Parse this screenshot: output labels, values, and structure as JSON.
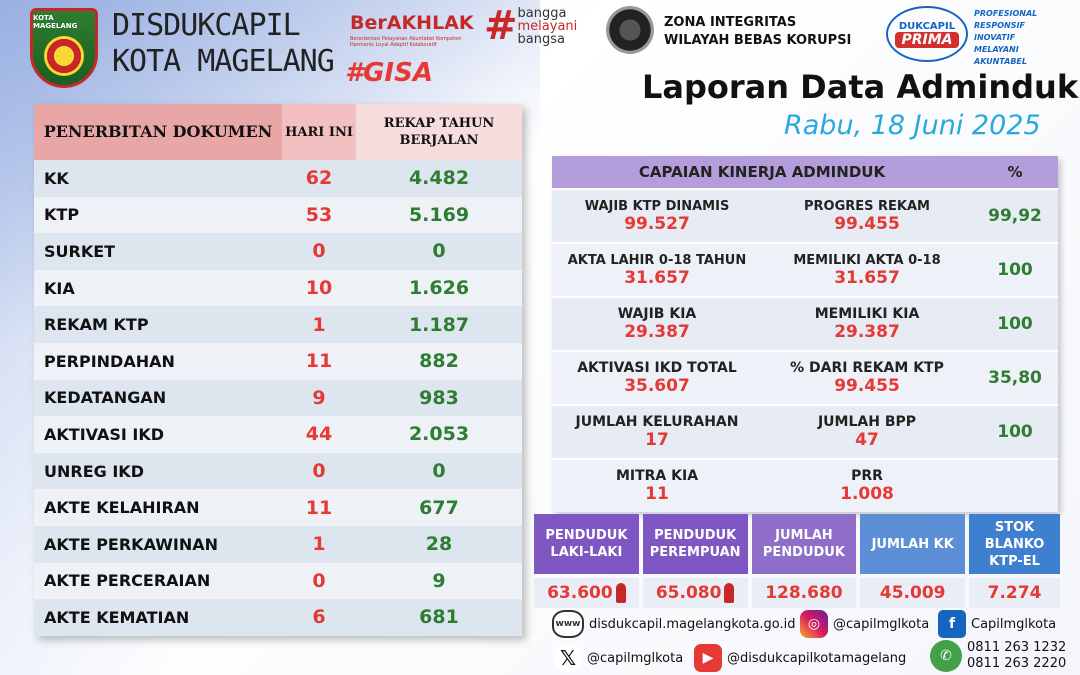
{
  "header": {
    "logo_text": "KOTA MAGELANG",
    "org_line1": "DISDUKCAPIL",
    "org_line2": "KOTA MAGELANG",
    "berakhlak": "BerAKHLAK",
    "berakhlak_sub": "Berorientasi Pelayanan Akuntabel Kompeten Harmonis Loyal Adaptif Kolaboratif",
    "bangga_hash": "#",
    "bangga_lines": [
      "bangga",
      "melayani",
      "bangsa"
    ],
    "gisa": "#GISA",
    "zi_line1": "ZONA INTEGRITAS",
    "zi_line2": "WILAYAH BEBAS KORUPSI",
    "prima_top": "DUKCAPIL",
    "prima_bottom": "PRIMA",
    "prima_tags": [
      "PROFESIONAL",
      "RESPONSIF",
      "INOVATIF",
      "MELAYANI",
      "AKUNTABEL"
    ],
    "report_title": "Laporan Data Adminduk",
    "report_date": "Rabu, 18 Juni 2025"
  },
  "documents": {
    "head_name": "PENERBITAN DOKUMEN",
    "head_today": "HARI INI",
    "head_total": "REKAP TAHUN BERJALAN",
    "rows": [
      {
        "name": "KK",
        "today": "62",
        "total": "4.482"
      },
      {
        "name": "KTP",
        "today": "53",
        "total": "5.169"
      },
      {
        "name": "SURKET",
        "today": "0",
        "total": "0"
      },
      {
        "name": "KIA",
        "today": "10",
        "total": "1.626"
      },
      {
        "name": "REKAM KTP",
        "today": "1",
        "total": "1.187"
      },
      {
        "name": "PERPINDAHAN",
        "today": "11",
        "total": "882"
      },
      {
        "name": "KEDATANGAN",
        "today": "9",
        "total": "983"
      },
      {
        "name": "AKTIVASI IKD",
        "today": "44",
        "total": "2.053"
      },
      {
        "name": "UNREG IKD",
        "today": "0",
        "total": "0"
      },
      {
        "name": "AKTE KELAHIRAN",
        "today": "11",
        "total": "677"
      },
      {
        "name": "AKTE PERKAWINAN",
        "today": "1",
        "total": "28"
      },
      {
        "name": "AKTE PERCERAIAN",
        "today": "0",
        "total": "9"
      },
      {
        "name": "AKTE KEMATIAN",
        "today": "6",
        "total": "681"
      }
    ]
  },
  "performance": {
    "title": "CAPAIAN KINERJA ADMINDUK",
    "pct_head": "%",
    "rows": [
      {
        "l1": "WAJIB KTP DINAMIS",
        "v1": "99.527",
        "l2": "PROGRES REKAM",
        "v2": "99.455",
        "pct": "99,92"
      },
      {
        "l1": "AKTA LAHIR 0-18 TAHUN",
        "v1": "31.657",
        "l2": "MEMILIKI AKTA 0-18",
        "v2": "31.657",
        "pct": "100"
      },
      {
        "l1": "WAJIB KIA",
        "v1": "29.387",
        "l2": "MEMILIKI KIA",
        "v2": "29.387",
        "pct": "100"
      },
      {
        "l1": "AKTIVASI IKD TOTAL",
        "v1": "35.607",
        "l2": "% DARI REKAM KTP",
        "v2": "99.455",
        "pct": "35,80"
      },
      {
        "l1": "JUMLAH KELURAHAN",
        "v1": "17",
        "l2": "JUMLAH BPP",
        "v2": "47",
        "pct": "100"
      },
      {
        "l1": "MITRA KIA",
        "v1": "11",
        "l2": "PRR",
        "v2": "1.008",
        "pct": ""
      }
    ]
  },
  "population": [
    {
      "head": "PENDUDUK LAKI-LAKI",
      "value": "63.600",
      "color": "#7e57c2"
    },
    {
      "head": "PENDUDUK PEREMPUAN",
      "value": "65.080",
      "color": "#7e57c2"
    },
    {
      "head": "JUMLAH PENDUDUK",
      "value": "128.680",
      "color": "#8e6ec8"
    },
    {
      "head": "JUMLAH KK",
      "value": "45.009",
      "color": "#5c8fd6"
    },
    {
      "head": "STOK BLANKO KTP-EL",
      "value": "7.274",
      "color": "#3f7fd0"
    }
  ],
  "footer": {
    "web_icon_text": "www",
    "website": "disdukcapil.magelangkota.go.id",
    "instagram": "@capilmglkota",
    "facebook": "Capilmglkota",
    "twitter": "@capilmglkota",
    "youtube": "@disdukcapilkotamagelang",
    "wa1": "0811 263 1232",
    "wa2": "0811 263 2220"
  }
}
